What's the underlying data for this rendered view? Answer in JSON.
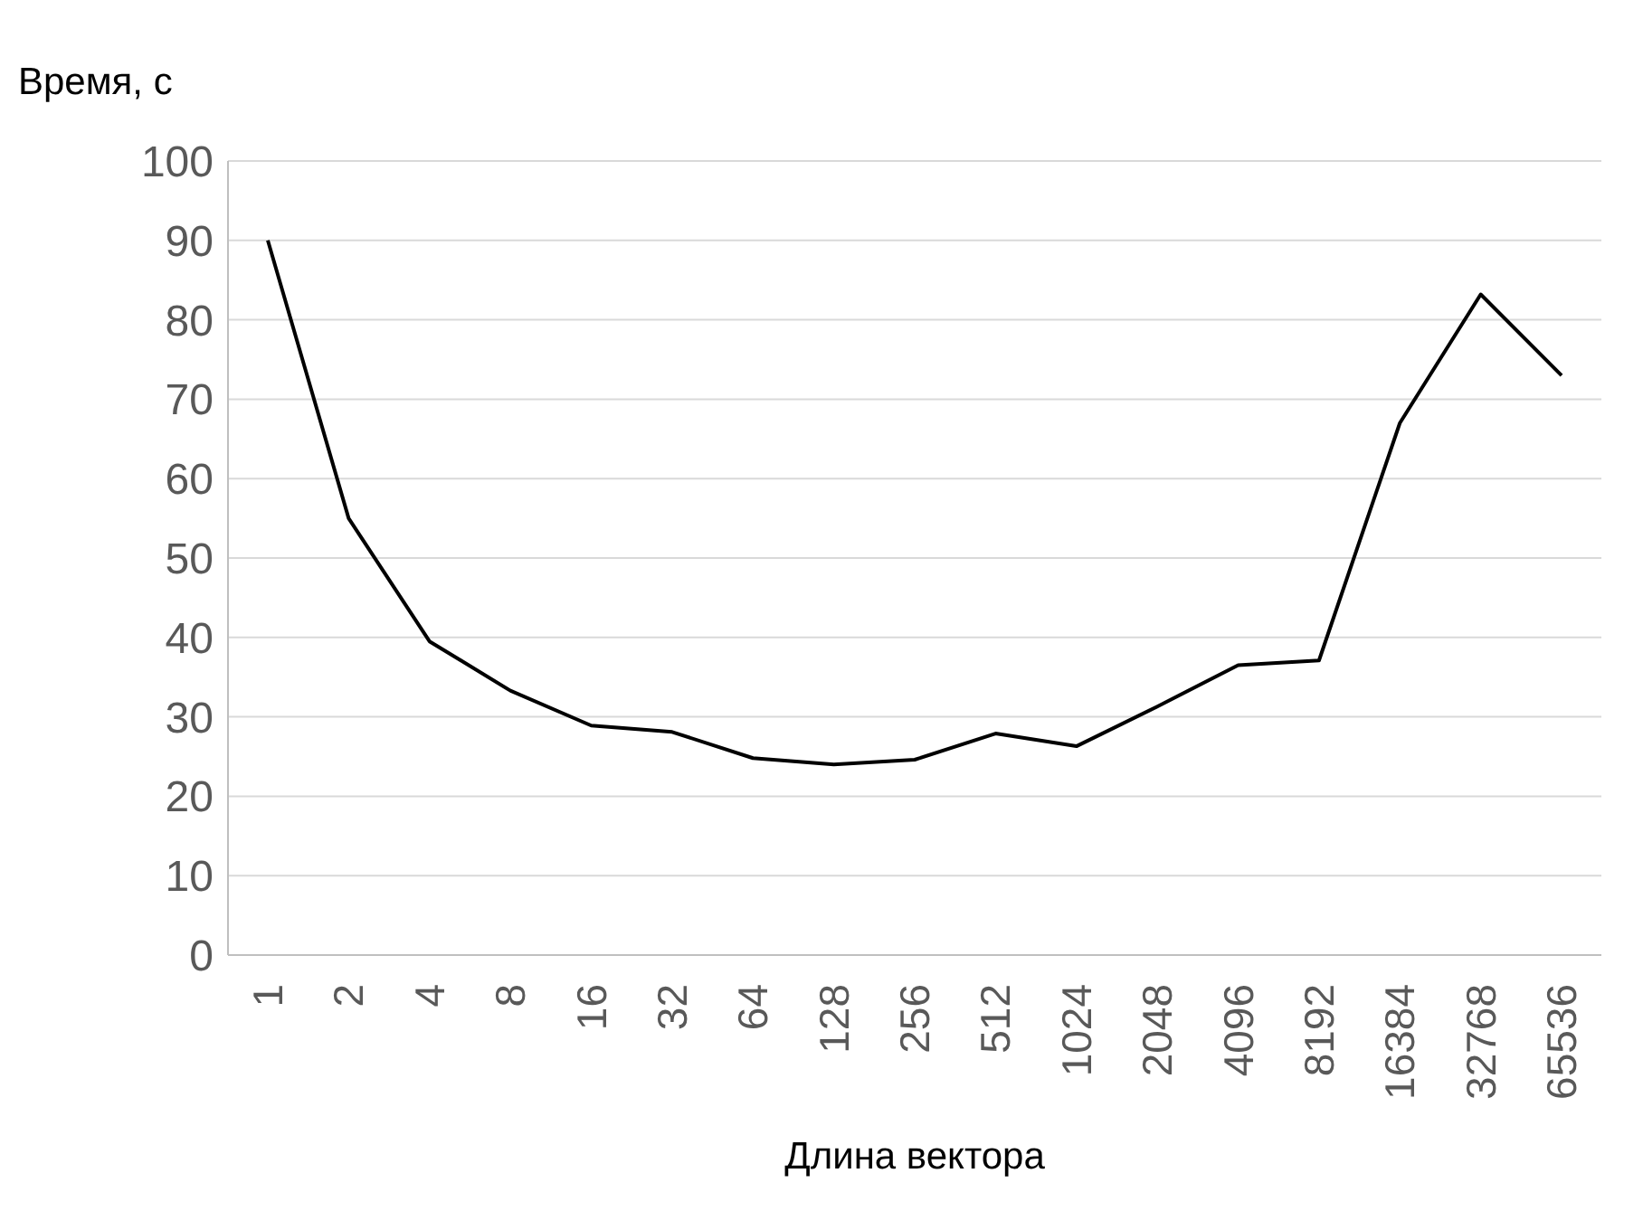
{
  "chart_data": {
    "type": "line",
    "xlabel": "Длина вектора",
    "ylabel": "Время, с",
    "categories": [
      "1",
      "2",
      "4",
      "8",
      "16",
      "32",
      "64",
      "128",
      "256",
      "512",
      "1024",
      "2048",
      "4096",
      "8192",
      "16384",
      "32768",
      "65536"
    ],
    "series": [
      {
        "color": "#000000",
        "values": [
          90,
          55,
          39.5,
          33.3,
          28.9,
          28.1,
          24.8,
          24,
          24.6,
          27.9,
          26.3,
          31.3,
          36.5,
          37.1,
          67,
          83.2,
          73
        ]
      }
    ],
    "ylim": [
      0,
      100
    ],
    "yticks": [
      0,
      10,
      20,
      30,
      40,
      50,
      60,
      70,
      80,
      90,
      100
    ],
    "grid": "y",
    "legend": false,
    "marker": "none",
    "line_style": "solid"
  }
}
